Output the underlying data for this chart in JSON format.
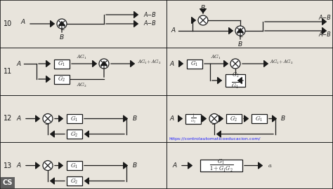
{
  "bg_color": "#e8e4dc",
  "line_color": "#1a1a1a",
  "text_color": "#1a1a1a",
  "url_text": "https://controlautomaticoeducacion.com/",
  "url_color": "#1a1aff",
  "row_labels": [
    "10",
    "11",
    "12",
    "13"
  ],
  "fig_width": 4.74,
  "fig_height": 2.7,
  "dpi": 100,
  "row_tops": [
    270,
    202,
    134,
    67,
    0
  ],
  "col_div": 237
}
